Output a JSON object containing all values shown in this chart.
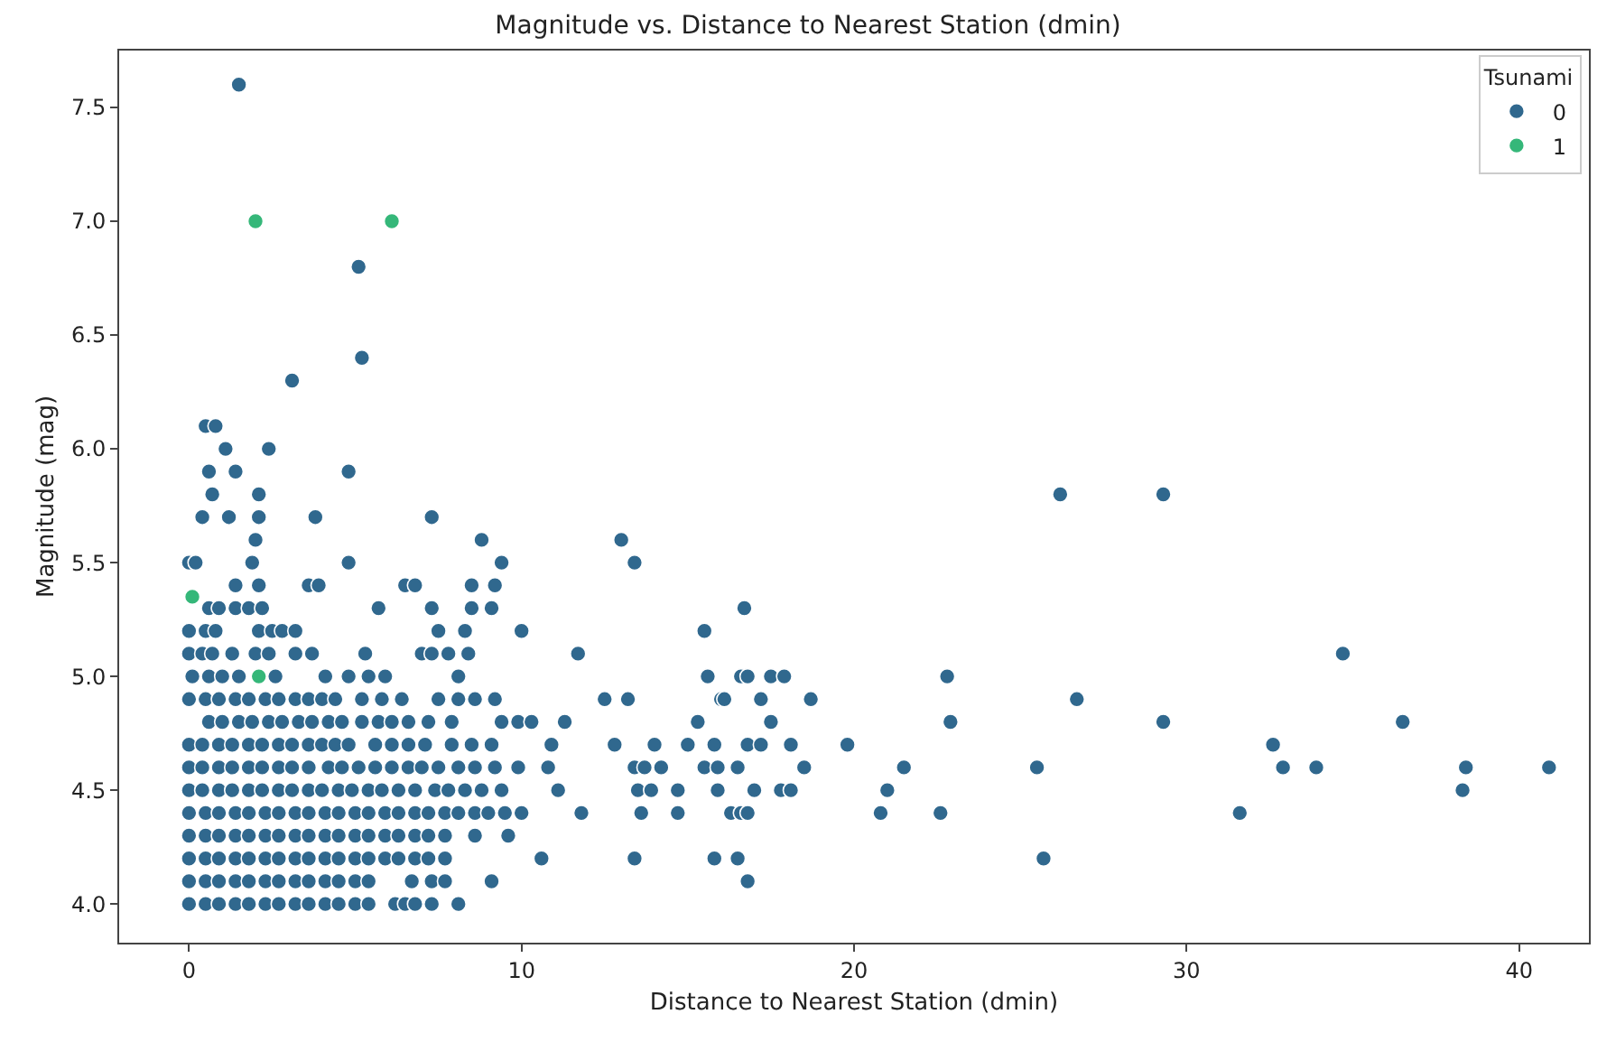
{
  "chart_data": {
    "type": "scatter",
    "title": "Magnitude vs. Distance to Nearest Station (dmin)",
    "xlabel": "Distance to Nearest Station (dmin)",
    "ylabel": "Magnitude (mag)",
    "legend_title": "Tsunami",
    "legend": "top right",
    "grid": false,
    "marker": "circle",
    "xlim": [
      -2.1,
      42.1
    ],
    "ylim": [
      3.83,
      7.75
    ],
    "xticks": [
      0,
      10,
      20,
      30,
      40
    ],
    "yticks": [
      {
        "value": 4,
        "label": "4.0"
      },
      {
        "value": 4.5,
        "label": "4.5"
      },
      {
        "value": 5,
        "label": "5.0"
      },
      {
        "value": 5.5,
        "label": "5.5"
      },
      {
        "value": 6,
        "label": "6.0"
      },
      {
        "value": 6.5,
        "label": "6.5"
      },
      {
        "value": 7,
        "label": "7.0"
      },
      {
        "value": 7.5,
        "label": "7.5"
      }
    ],
    "series": [
      {
        "name": "0",
        "color": "#30688e",
        "x": [
          1.5,
          5.1,
          5.2,
          3.1,
          0.5,
          0.8,
          1.1,
          2.4,
          0.6,
          1.4,
          4.8,
          0.7,
          2.1,
          26.2,
          29.3,
          0.4,
          1.2,
          2.1,
          3.8,
          7.3,
          2.0,
          8.8,
          13.0,
          0.0,
          0.2,
          1.9,
          4.8,
          9.4,
          13.4,
          1.4,
          2.1,
          3.6,
          3.9,
          6.5,
          6.8,
          8.5,
          9.2,
          0.6,
          0.9,
          1.4,
          1.8,
          2.2,
          5.7,
          7.3,
          8.5,
          9.1,
          16.7,
          0.0,
          0.5,
          0.8,
          2.1,
          2.5,
          2.8,
          3.2,
          7.5,
          8.3,
          10.0,
          15.5,
          0.0,
          0.4,
          0.7,
          1.3,
          2.0,
          2.4,
          3.2,
          3.7,
          5.3,
          7.0,
          7.3,
          7.8,
          8.4,
          11.7,
          34.7,
          0.1,
          0.6,
          1.0,
          1.5,
          2.6,
          4.1,
          4.8,
          5.4,
          5.9,
          8.1,
          15.6,
          16.6,
          16.8,
          17.5,
          17.9,
          22.8,
          0.0,
          0.5,
          0.9,
          1.4,
          1.8,
          2.3,
          2.7,
          3.2,
          3.6,
          4.0,
          4.4,
          5.2,
          5.8,
          6.4,
          7.5,
          8.1,
          8.6,
          9.2,
          12.5,
          13.2,
          16.0,
          16.1,
          17.2,
          18.7,
          26.7,
          0.6,
          1.0,
          1.5,
          1.9,
          2.4,
          2.8,
          3.3,
          3.7,
          4.2,
          4.6,
          5.2,
          5.7,
          6.1,
          6.6,
          7.2,
          7.9,
          9.4,
          9.9,
          10.3,
          11.3,
          15.3,
          17.5,
          22.9,
          29.3,
          36.5,
          0.0,
          0.4,
          0.9,
          1.3,
          1.8,
          2.2,
          2.7,
          3.1,
          3.6,
          4.0,
          4.4,
          4.8,
          5.6,
          6.1,
          6.6,
          7.1,
          7.9,
          8.5,
          9.1,
          10.9,
          12.8,
          14.0,
          15.0,
          15.8,
          16.8,
          17.2,
          18.1,
          19.8,
          32.6,
          0.0,
          0.4,
          0.9,
          1.3,
          1.8,
          2.2,
          2.7,
          3.1,
          3.6,
          4.2,
          4.6,
          5.1,
          5.6,
          6.1,
          6.6,
          7.0,
          7.5,
          8.1,
          8.6,
          9.2,
          9.9,
          10.8,
          13.4,
          13.7,
          14.2,
          15.5,
          15.9,
          16.5,
          18.5,
          21.5,
          25.5,
          32.9,
          33.9,
          38.4,
          40.9,
          0.0,
          0.4,
          0.9,
          1.3,
          1.8,
          2.2,
          2.7,
          3.1,
          3.6,
          4.0,
          4.5,
          4.9,
          5.4,
          5.8,
          6.3,
          6.8,
          7.4,
          7.8,
          8.3,
          8.8,
          9.4,
          11.1,
          13.5,
          13.9,
          14.7,
          15.9,
          17.0,
          17.8,
          18.1,
          21.0,
          38.3,
          0.0,
          0.5,
          0.9,
          1.4,
          1.8,
          2.3,
          2.7,
          3.2,
          3.6,
          4.1,
          4.5,
          5.0,
          5.4,
          5.9,
          6.3,
          6.8,
          7.2,
          7.7,
          8.1,
          8.6,
          9.0,
          9.5,
          10.0,
          11.8,
          13.6,
          14.7,
          16.3,
          16.6,
          16.8,
          20.8,
          22.6,
          31.6,
          0.0,
          0.5,
          0.9,
          1.4,
          1.8,
          2.3,
          2.7,
          3.2,
          3.6,
          4.1,
          4.5,
          5.0,
          5.4,
          5.9,
          6.3,
          6.8,
          7.2,
          7.7,
          8.6,
          9.6,
          0.0,
          0.5,
          0.9,
          1.4,
          1.8,
          2.3,
          2.7,
          3.2,
          3.6,
          4.1,
          4.5,
          5.0,
          5.4,
          5.9,
          6.3,
          6.8,
          7.2,
          7.7,
          10.6,
          13.4,
          15.8,
          16.5,
          25.7,
          0.0,
          0.5,
          0.9,
          1.4,
          1.8,
          2.3,
          2.7,
          3.2,
          3.6,
          4.1,
          4.5,
          5.0,
          5.4,
          6.7,
          7.3,
          7.7,
          9.1,
          16.8,
          0.0,
          0.5,
          0.9,
          1.4,
          1.8,
          2.3,
          2.7,
          3.2,
          3.6,
          4.1,
          4.5,
          5.0,
          5.4,
          6.2,
          6.5,
          6.8,
          7.3,
          8.1
        ],
        "values": [
          7.6,
          6.8,
          6.4,
          6.3,
          6.1,
          6.1,
          6.0,
          6.0,
          5.9,
          5.9,
          5.9,
          5.8,
          5.8,
          5.8,
          5.8,
          5.7,
          5.7,
          5.7,
          5.7,
          5.7,
          5.6,
          5.6,
          5.6,
          5.5,
          5.5,
          5.5,
          5.5,
          5.5,
          5.5,
          5.4,
          5.4,
          5.4,
          5.4,
          5.4,
          5.4,
          5.4,
          5.4,
          5.3,
          5.3,
          5.3,
          5.3,
          5.3,
          5.3,
          5.3,
          5.3,
          5.3,
          5.3,
          5.2,
          5.2,
          5.2,
          5.2,
          5.2,
          5.2,
          5.2,
          5.2,
          5.2,
          5.2,
          5.2,
          5.1,
          5.1,
          5.1,
          5.1,
          5.1,
          5.1,
          5.1,
          5.1,
          5.1,
          5.1,
          5.1,
          5.1,
          5.1,
          5.1,
          5.1,
          5.0,
          5.0,
          5.0,
          5.0,
          5.0,
          5.0,
          5.0,
          5.0,
          5.0,
          5.0,
          5.0,
          5.0,
          5.0,
          5.0,
          5.0,
          5.0,
          4.9,
          4.9,
          4.9,
          4.9,
          4.9,
          4.9,
          4.9,
          4.9,
          4.9,
          4.9,
          4.9,
          4.9,
          4.9,
          4.9,
          4.9,
          4.9,
          4.9,
          4.9,
          4.9,
          4.9,
          4.9,
          4.9,
          4.9,
          4.9,
          4.9,
          4.8,
          4.8,
          4.8,
          4.8,
          4.8,
          4.8,
          4.8,
          4.8,
          4.8,
          4.8,
          4.8,
          4.8,
          4.8,
          4.8,
          4.8,
          4.8,
          4.8,
          4.8,
          4.8,
          4.8,
          4.8,
          4.8,
          4.8,
          4.8,
          4.8,
          4.7,
          4.7,
          4.7,
          4.7,
          4.7,
          4.7,
          4.7,
          4.7,
          4.7,
          4.7,
          4.7,
          4.7,
          4.7,
          4.7,
          4.7,
          4.7,
          4.7,
          4.7,
          4.7,
          4.7,
          4.7,
          4.7,
          4.7,
          4.7,
          4.7,
          4.7,
          4.7,
          4.7,
          4.7,
          4.6,
          4.6,
          4.6,
          4.6,
          4.6,
          4.6,
          4.6,
          4.6,
          4.6,
          4.6,
          4.6,
          4.6,
          4.6,
          4.6,
          4.6,
          4.6,
          4.6,
          4.6,
          4.6,
          4.6,
          4.6,
          4.6,
          4.6,
          4.6,
          4.6,
          4.6,
          4.6,
          4.6,
          4.6,
          4.6,
          4.6,
          4.6,
          4.6,
          4.6,
          4.6,
          4.5,
          4.5,
          4.5,
          4.5,
          4.5,
          4.5,
          4.5,
          4.5,
          4.5,
          4.5,
          4.5,
          4.5,
          4.5,
          4.5,
          4.5,
          4.5,
          4.5,
          4.5,
          4.5,
          4.5,
          4.5,
          4.5,
          4.5,
          4.5,
          4.5,
          4.5,
          4.5,
          4.5,
          4.5,
          4.5,
          4.5,
          4.4,
          4.4,
          4.4,
          4.4,
          4.4,
          4.4,
          4.4,
          4.4,
          4.4,
          4.4,
          4.4,
          4.4,
          4.4,
          4.4,
          4.4,
          4.4,
          4.4,
          4.4,
          4.4,
          4.4,
          4.4,
          4.4,
          4.4,
          4.4,
          4.4,
          4.4,
          4.4,
          4.4,
          4.4,
          4.4,
          4.4,
          4.4,
          4.3,
          4.3,
          4.3,
          4.3,
          4.3,
          4.3,
          4.3,
          4.3,
          4.3,
          4.3,
          4.3,
          4.3,
          4.3,
          4.3,
          4.3,
          4.3,
          4.3,
          4.3,
          4.3,
          4.3,
          4.2,
          4.2,
          4.2,
          4.2,
          4.2,
          4.2,
          4.2,
          4.2,
          4.2,
          4.2,
          4.2,
          4.2,
          4.2,
          4.2,
          4.2,
          4.2,
          4.2,
          4.2,
          4.2,
          4.2,
          4.2,
          4.2,
          4.2,
          4.1,
          4.1,
          4.1,
          4.1,
          4.1,
          4.1,
          4.1,
          4.1,
          4.1,
          4.1,
          4.1,
          4.1,
          4.1,
          4.1,
          4.1,
          4.1,
          4.1,
          4.1,
          4.0,
          4.0,
          4.0,
          4.0,
          4.0,
          4.0,
          4.0,
          4.0,
          4.0,
          4.0,
          4.0,
          4.0,
          4.0,
          4.0,
          4.0,
          4.0,
          4.0,
          4.0
        ]
      },
      {
        "name": "1",
        "color": "#35b779",
        "x": [
          2.0,
          6.1,
          0.1,
          2.1
        ],
        "values": [
          7.0,
          7.0,
          5.35,
          5.0
        ]
      }
    ]
  }
}
